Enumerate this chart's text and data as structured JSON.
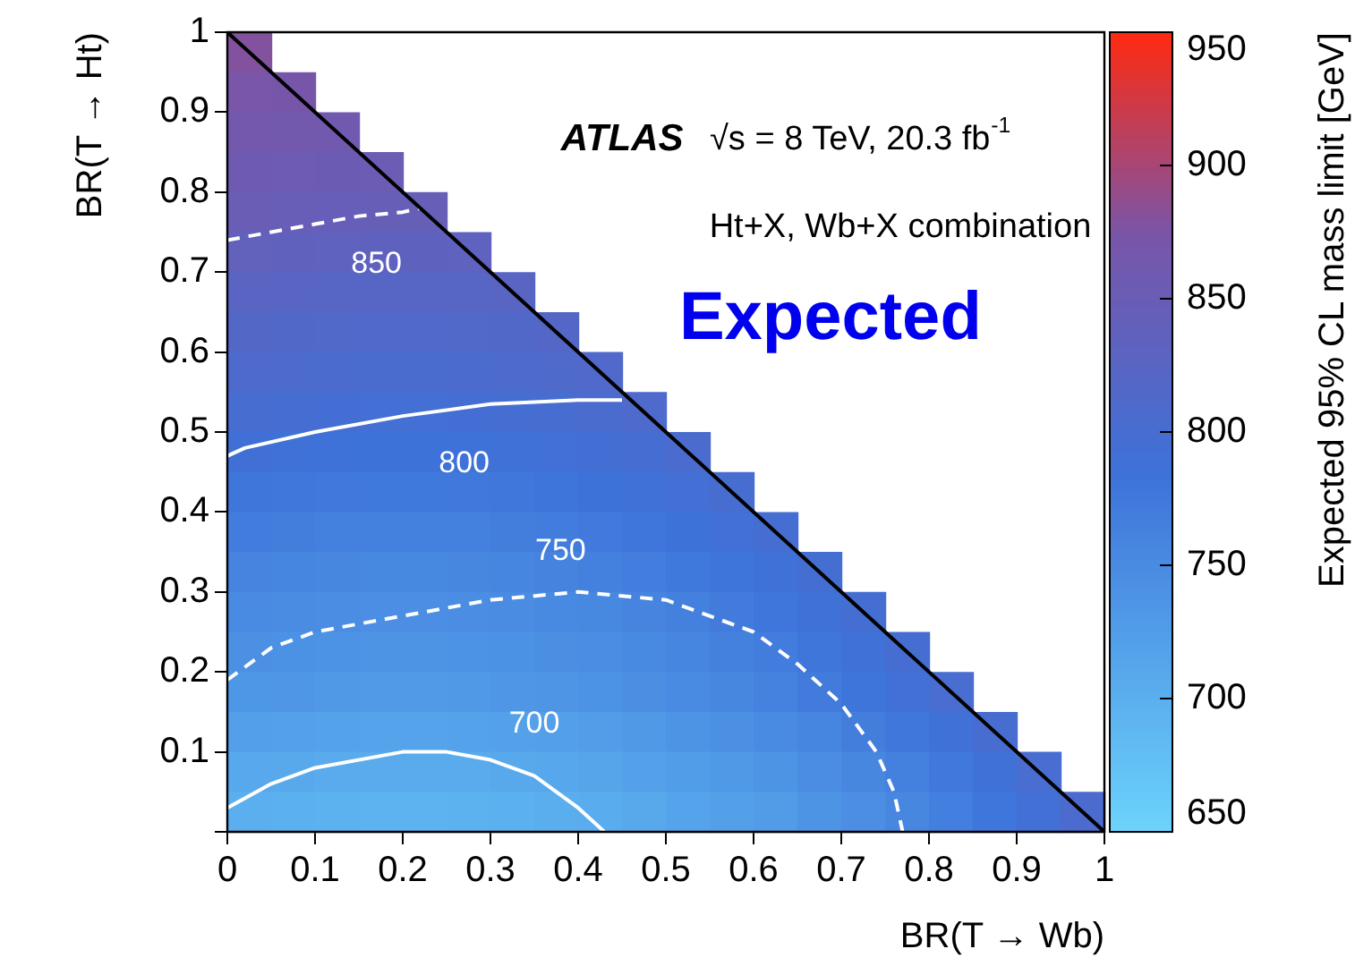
{
  "chart_data": {
    "type": "heatmap",
    "xlabel": "BR(T → Wb)",
    "ylabel": "BR(T → Ht)",
    "clabel": "Expected 95% CL mass limit [GeV]",
    "annotations": [
      "ATLAS",
      "√s = 8 TeV, 20.3 fb$^{-1}$",
      "Ht+X, Wb+X combination",
      "Expected",
      "850",
      "800",
      "750",
      "700"
    ],
    "x": [
      0.025,
      0.075,
      0.125,
      0.175,
      0.225,
      0.275,
      0.325,
      0.375,
      0.425,
      0.475,
      0.525,
      0.575,
      0.625,
      0.675,
      0.725,
      0.775,
      0.825,
      0.875,
      0.925,
      0.975
    ],
    "y": [
      0.975,
      0.925,
      0.875,
      0.825,
      0.775,
      0.725,
      0.675,
      0.625,
      0.575,
      0.525,
      0.475,
      0.425,
      0.375,
      0.325,
      0.275,
      0.225,
      0.175,
      0.125,
      0.075,
      0.025
    ],
    "xlim": [
      0,
      1
    ],
    "xticks": [
      0,
      0.1,
      0.2,
      0.3,
      0.4,
      0.5,
      0.6,
      0.7,
      0.8,
      0.9,
      1
    ],
    "ylim": [
      0,
      1
    ],
    "yticks": [
      {
        "value": 0,
        "label": null
      },
      0.1,
      0.2,
      0.3,
      0.4,
      0.5,
      0.6,
      0.7,
      0.8,
      0.9,
      1
    ],
    "clim": [
      650,
      950
    ],
    "cticks": [
      650,
      700,
      750,
      800,
      850,
      900,
      950
    ],
    "cells": [
      [
        880,
        null,
        null,
        null,
        null,
        null,
        null,
        null,
        null,
        null,
        null,
        null,
        null,
        null,
        null,
        null,
        null,
        null,
        null,
        null
      ],
      [
        873,
        871,
        null,
        null,
        null,
        null,
        null,
        null,
        null,
        null,
        null,
        null,
        null,
        null,
        null,
        null,
        null,
        null,
        null,
        null
      ],
      [
        866,
        864,
        862,
        null,
        null,
        null,
        null,
        null,
        null,
        null,
        null,
        null,
        null,
        null,
        null,
        null,
        null,
        null,
        null,
        null
      ],
      [
        859,
        857,
        855,
        854,
        null,
        null,
        null,
        null,
        null,
        null,
        null,
        null,
        null,
        null,
        null,
        null,
        null,
        null,
        null,
        null
      ],
      [
        850,
        848,
        846,
        845,
        845,
        null,
        null,
        null,
        null,
        null,
        null,
        null,
        null,
        null,
        null,
        null,
        null,
        null,
        null,
        null
      ],
      [
        839,
        837,
        835,
        834,
        834,
        835,
        null,
        null,
        null,
        null,
        null,
        null,
        null,
        null,
        null,
        null,
        null,
        null,
        null,
        null
      ],
      [
        828,
        826,
        824,
        823,
        823,
        824,
        826,
        null,
        null,
        null,
        null,
        null,
        null,
        null,
        null,
        null,
        null,
        null,
        null,
        null
      ],
      [
        818,
        816,
        814,
        813,
        813,
        814,
        816,
        819,
        null,
        null,
        null,
        null,
        null,
        null,
        null,
        null,
        null,
        null,
        null,
        null
      ],
      [
        809,
        807,
        805,
        804,
        804,
        805,
        807,
        810,
        813,
        null,
        null,
        null,
        null,
        null,
        null,
        null,
        null,
        null,
        null,
        null
      ],
      [
        800,
        798,
        796,
        795,
        795,
        796,
        798,
        801,
        804,
        809,
        null,
        null,
        null,
        null,
        null,
        null,
        null,
        null,
        null,
        null
      ],
      [
        790,
        788,
        786,
        785,
        785,
        786,
        788,
        791,
        794,
        799,
        805,
        null,
        null,
        null,
        null,
        null,
        null,
        null,
        null,
        null
      ],
      [
        780,
        778,
        776,
        775,
        775,
        776,
        778,
        781,
        784,
        789,
        795,
        801,
        null,
        null,
        null,
        null,
        null,
        null,
        null,
        null
      ],
      [
        770,
        768,
        766,
        765,
        765,
        766,
        768,
        771,
        774,
        779,
        785,
        791,
        798,
        null,
        null,
        null,
        null,
        null,
        null,
        null
      ],
      [
        760,
        758,
        756,
        755,
        755,
        756,
        758,
        761,
        764,
        769,
        775,
        781,
        788,
        797,
        null,
        null,
        null,
        null,
        null,
        null
      ],
      [
        751,
        749,
        747,
        746,
        746,
        747,
        749,
        752,
        755,
        760,
        766,
        772,
        779,
        788,
        797,
        null,
        null,
        null,
        null,
        null
      ],
      [
        743,
        741,
        739,
        738,
        738,
        739,
        741,
        744,
        747,
        752,
        758,
        764,
        771,
        780,
        789,
        799,
        null,
        null,
        null,
        null
      ],
      [
        735,
        733,
        731,
        730,
        730,
        731,
        733,
        736,
        739,
        744,
        750,
        756,
        763,
        772,
        781,
        791,
        802,
        null,
        null,
        null
      ],
      [
        722,
        720,
        718,
        717,
        717,
        718,
        720,
        723,
        726,
        731,
        737,
        743,
        750,
        759,
        768,
        778,
        789,
        801,
        null,
        null
      ],
      [
        710,
        708,
        706,
        705,
        705,
        706,
        708,
        711,
        714,
        719,
        725,
        731,
        738,
        747,
        756,
        766,
        777,
        789,
        802,
        null
      ],
      [
        700,
        698,
        696,
        695,
        695,
        696,
        698,
        701,
        704,
        709,
        715,
        721,
        728,
        737,
        746,
        756,
        767,
        779,
        792,
        806
      ]
    ],
    "series": [
      {
        "type": "line",
        "color": "#000000",
        "line_style": "solid",
        "x": [
          0,
          1
        ],
        "values": [
          1,
          0
        ]
      },
      {
        "type": "line",
        "color": "#ffffff",
        "line_style": "dashed",
        "x": [
          0,
          0.05,
          0.1,
          0.15,
          0.2,
          0.22
        ],
        "values": [
          0.74,
          0.75,
          0.76,
          0.77,
          0.775,
          0.78
        ]
      },
      {
        "type": "line",
        "color": "#ffffff",
        "line_style": "solid",
        "x": [
          0,
          0.02,
          0.1,
          0.2,
          0.3,
          0.4,
          0.45
        ],
        "values": [
          0.47,
          0.48,
          0.5,
          0.52,
          0.535,
          0.54,
          0.54
        ]
      },
      {
        "type": "line",
        "color": "#ffffff",
        "line_style": "dashed",
        "x": [
          0,
          0.05,
          0.1,
          0.2,
          0.3,
          0.4,
          0.5,
          0.6,
          0.65,
          0.7,
          0.74,
          0.76,
          0.77
        ],
        "values": [
          0.19,
          0.23,
          0.25,
          0.27,
          0.29,
          0.3,
          0.29,
          0.25,
          0.21,
          0.16,
          0.1,
          0.05,
          0
        ]
      },
      {
        "type": "line",
        "color": "#ffffff",
        "line_style": "solid",
        "x": [
          0,
          0.05,
          0.1,
          0.2,
          0.25,
          0.3,
          0.35,
          0.4,
          0.43
        ],
        "values": [
          0.03,
          0.06,
          0.08,
          0.1,
          0.1,
          0.09,
          0.07,
          0.03,
          0
        ]
      }
    ]
  }
}
